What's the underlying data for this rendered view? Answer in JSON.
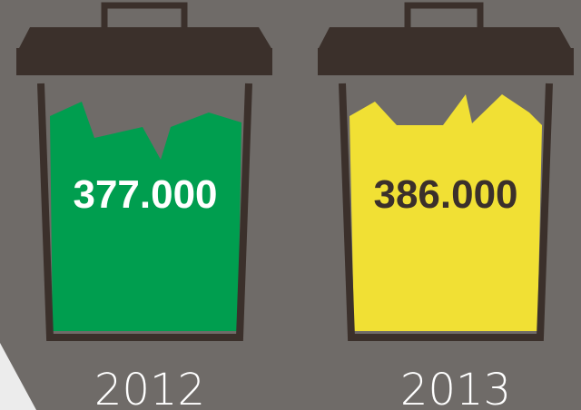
{
  "colors": {
    "background": "#6f6b68",
    "bin": "#3b302b",
    "accent_triangle": "#ececec"
  },
  "chart_data": {
    "type": "bar",
    "categories": [
      "2012",
      "2013"
    ],
    "values": [
      377000,
      386000
    ],
    "value_labels": [
      "377.000",
      "386.000"
    ],
    "fill_colors": [
      "#009e4f",
      "#f1e034"
    ],
    "label_colors": [
      "#ffffff",
      "#3b302b"
    ],
    "title": "",
    "xlabel": "",
    "ylabel": ""
  }
}
